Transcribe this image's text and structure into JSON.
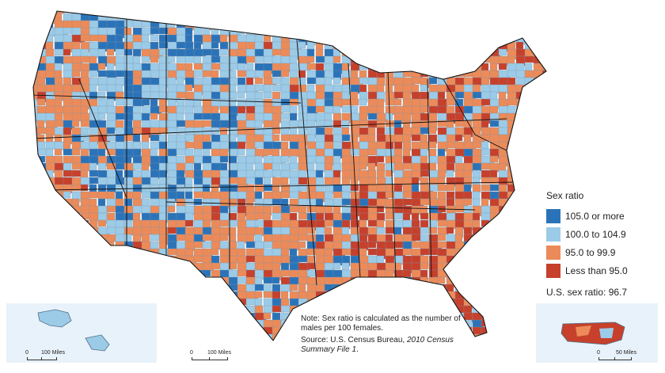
{
  "legend": {
    "title": "Sex ratio",
    "items": [
      {
        "label": "105.0 or more",
        "color": "#2b73b8"
      },
      {
        "label": "100.0 to 104.9",
        "color": "#9ccbe8"
      },
      {
        "label": "95.0 to 99.9",
        "color": "#ec8b59"
      },
      {
        "label": "Less than 95.0",
        "color": "#c6402b"
      }
    ],
    "us_ratio": "U.S. sex ratio: 96.7"
  },
  "note": {
    "text": "Note: Sex ratio is calculated as the number of males per 100 females.",
    "source_prefix": "Source: U.S. Census Bureau,",
    "source_title": "2010 Census Summary File 1",
    "source_suffix": "."
  },
  "scales": {
    "alaska": {
      "zero": "0",
      "label": "100 Miles"
    },
    "mainland": {
      "zero": "0",
      "label": "100 Miles"
    },
    "puerto_rico": {
      "zero": "0",
      "label": "50 Miles"
    }
  },
  "colors": {
    "state_border": "#111111",
    "county_border": "#7f95a8",
    "inset_background": "#e8f2fa"
  }
}
